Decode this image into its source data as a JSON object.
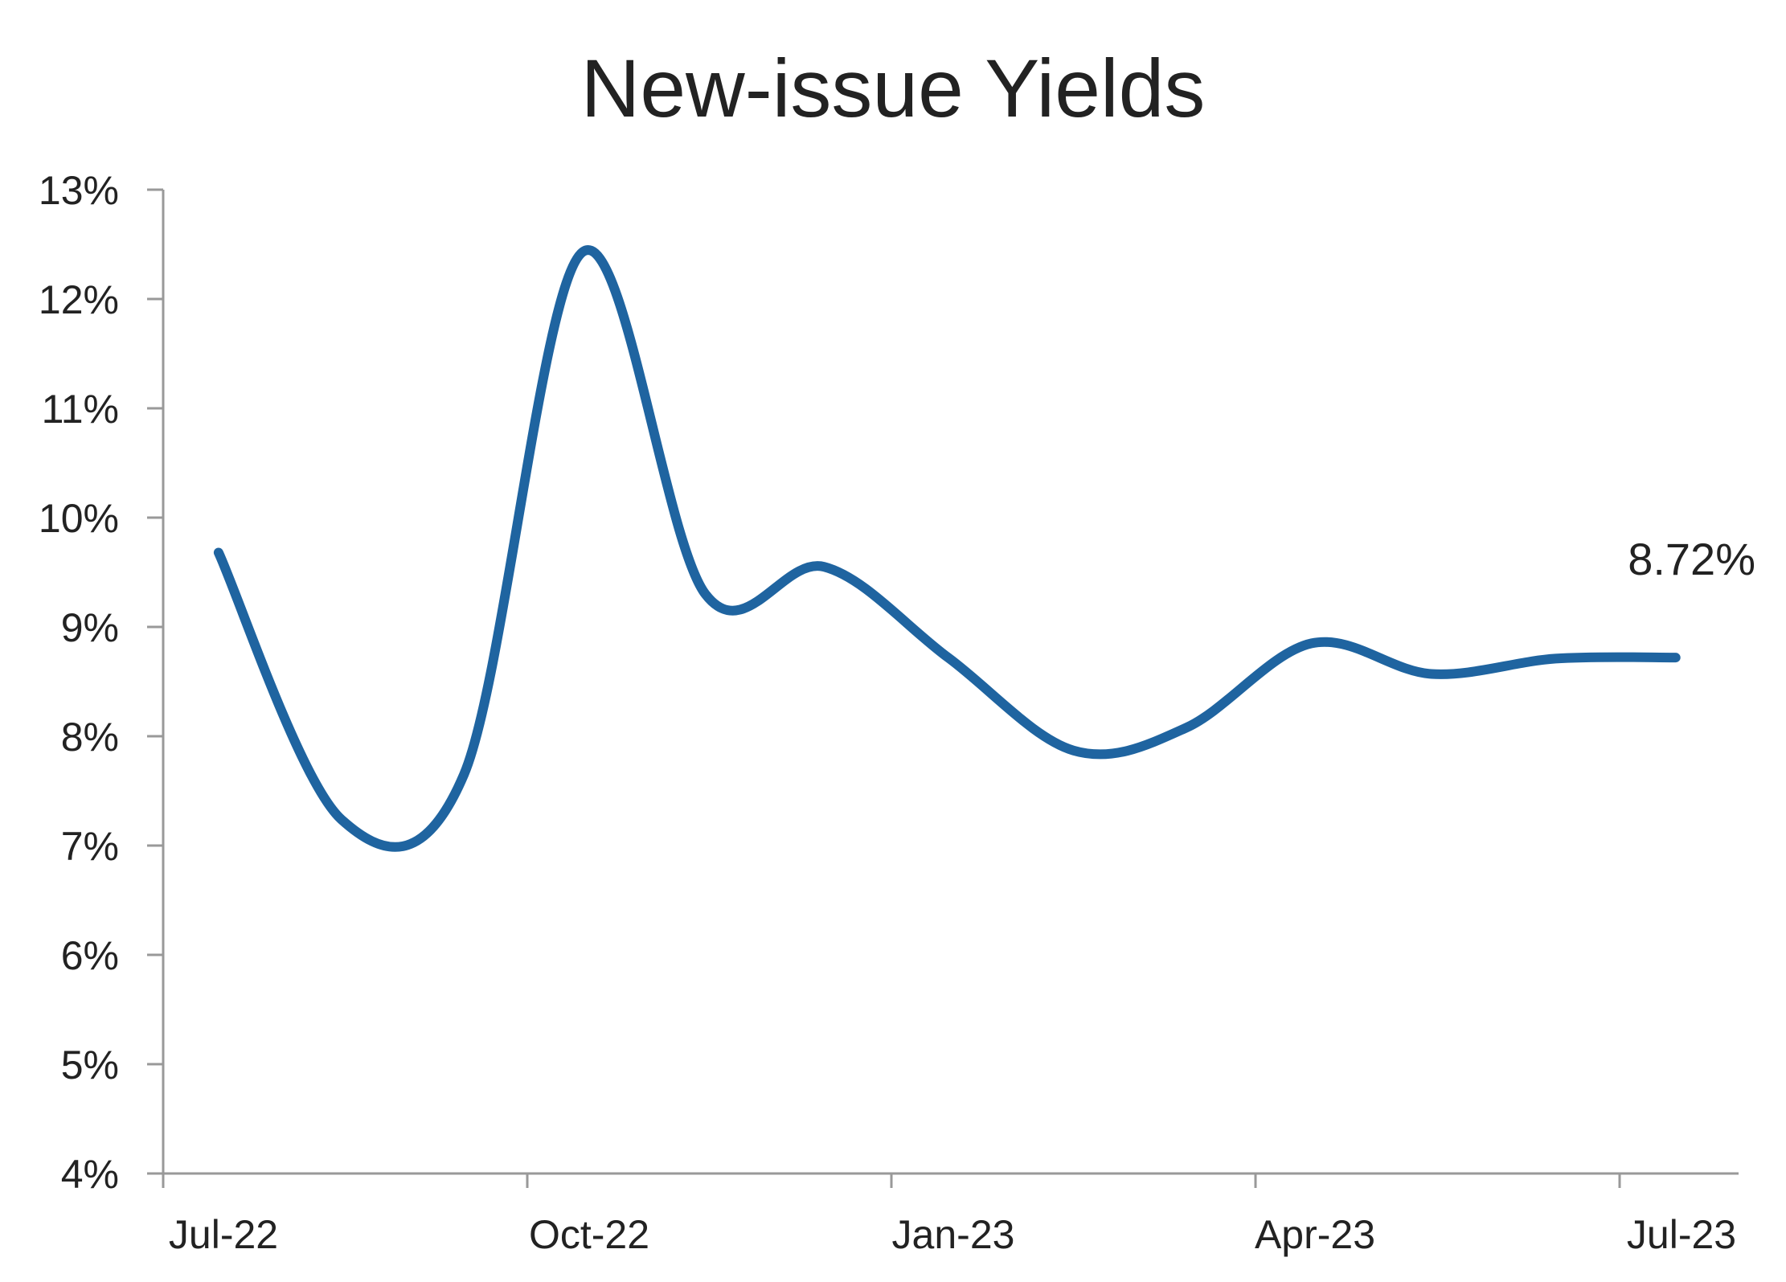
{
  "chart_data": {
    "type": "line",
    "title": "New-issue Yields",
    "xlabel": "",
    "ylabel": "",
    "x_tick_labels": [
      "Jul-22",
      "Oct-22",
      "Jan-23",
      "Apr-23",
      "Jul-23"
    ],
    "y_tick_labels": [
      "4%",
      "5%",
      "6%",
      "7%",
      "8%",
      "9%",
      "10%",
      "11%",
      "12%",
      "13%"
    ],
    "ylim": [
      4,
      13
    ],
    "y_unit": "%",
    "grid": false,
    "legend": "none",
    "series": [
      {
        "color": "#1f64a0",
        "points": [
          {
            "x": "2022-07-15",
            "y": 9.68
          },
          {
            "x": "2022-08-15",
            "y": 7.24
          },
          {
            "x": "2022-09-15",
            "y": 7.65
          },
          {
            "x": "2022-10-15",
            "y": 12.43
          },
          {
            "x": "2022-11-15",
            "y": 9.3
          },
          {
            "x": "2022-12-15",
            "y": 9.55
          },
          {
            "x": "2023-01-15",
            "y": 8.72
          },
          {
            "x": "2023-02-15",
            "y": 7.87
          },
          {
            "x": "2023-03-15",
            "y": 8.08
          },
          {
            "x": "2023-04-15",
            "y": 8.85
          },
          {
            "x": "2023-05-15",
            "y": 8.57
          },
          {
            "x": "2023-06-15",
            "y": 8.71
          },
          {
            "x": "2023-07-15",
            "y": 8.72
          }
        ]
      }
    ],
    "end_label": "8.72%"
  },
  "colors": {
    "line": "#1f64a0",
    "axis": "#999999",
    "text": "#222222"
  }
}
